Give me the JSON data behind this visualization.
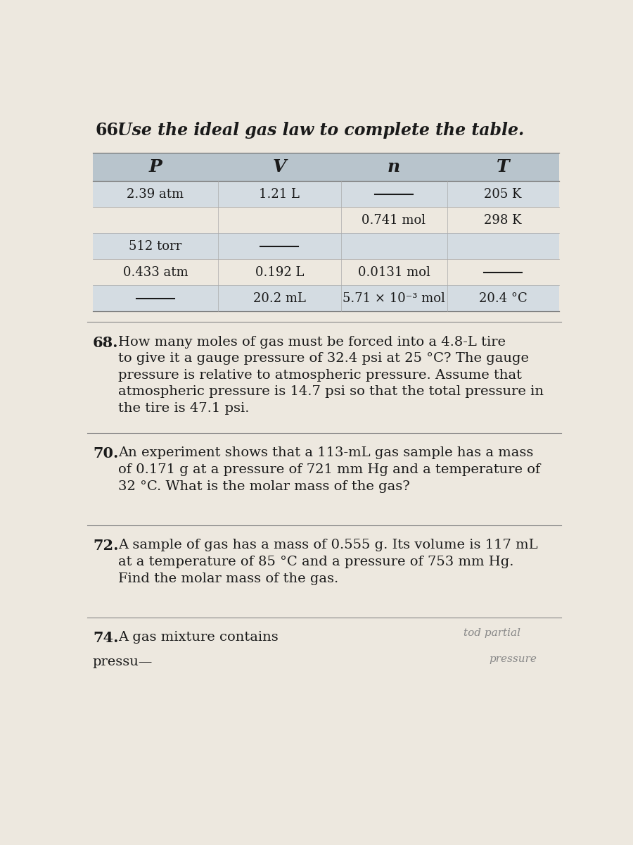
{
  "bg_color": "#ede8df",
  "title_num": "66.",
  "title_text": "Use the ideal gas law to complete the table.",
  "table_headers": [
    "P",
    "V",
    "n",
    "T"
  ],
  "table_rows": [
    [
      "2.39 atm",
      "1.21 L",
      "—",
      "205 K"
    ],
    [
      "",
      "",
      "0.741 mol",
      "298 K"
    ],
    [
      "512 torr",
      "—",
      "",
      ""
    ],
    [
      "0.433 atm",
      "0.192 L",
      "0.0131 mol",
      "—"
    ],
    [
      "—",
      "20.2 mL",
      "5.71 × 10⁻³ mol",
      "20.4 °C"
    ]
  ],
  "header_bg": "#b8c4cc",
  "row_alt_bg": "#d4dce2",
  "row_white_bg": "#ede8df",
  "q68_num": "68.",
  "q68_text": "How many moles of gas must be forced into a 4.8-L tire\nto give it a gauge pressure of 32.4 psi at 25 °C? The gauge\npressure is relative to atmospheric pressure. Assume that\natmospheric pressure is 14.7 psi so that the total pressure in\nthe tire is 47.1 psi.",
  "q70_num": "70.",
  "q70_text": "An experiment shows that a 113-mL gas sample has a mass\nof 0.171 g at a pressure of 721 mm Hg and a temperature of\n32 °C. What is the molar mass of the gas?",
  "q72_num": "72.",
  "q72_text": "A sample of gas has a mass of 0.555 g. Its volume is 117 mL\nat a temperature of 85 °C and a pressure of 753 mm Hg.\nFind the molar mass of the gas.",
  "q74_num": "74.",
  "q74_text": "A gas mixture contains",
  "q74_cont": "pressu—",
  "font_size_title": 17,
  "font_size_header": 18,
  "font_size_body": 14,
  "font_size_num": 15,
  "font_size_cell": 13,
  "text_color": "#1a1a1a"
}
